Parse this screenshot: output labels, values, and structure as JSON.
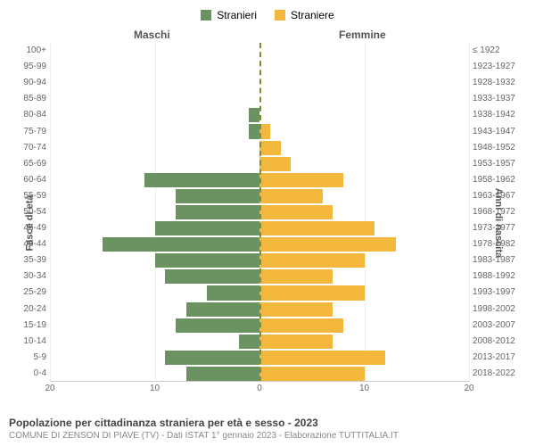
{
  "legend": {
    "male": {
      "label": "Stranieri",
      "color": "#6b9362"
    },
    "female": {
      "label": "Straniere",
      "color": "#f3b73e"
    }
  },
  "headers": {
    "left": "Maschi",
    "right": "Femmine"
  },
  "y_axis": {
    "left_title": "Fasce di età",
    "right_title": "Anni di nascita"
  },
  "chart": {
    "type": "population-pyramid",
    "xlim": [
      0,
      20
    ],
    "xtick_step": 10,
    "xticks_left": [
      "20",
      "10",
      "0"
    ],
    "xticks_right": [
      "0",
      "10",
      "20"
    ],
    "bar_color_left": "#6b9362",
    "bar_color_right": "#f3b73e",
    "background_color": "#ffffff",
    "grid_color": "#eeeeee",
    "center_line_color": "#888833",
    "rows": [
      {
        "age": "100+",
        "birth": "≤ 1922",
        "male": 0,
        "female": 0
      },
      {
        "age": "95-99",
        "birth": "1923-1927",
        "male": 0,
        "female": 0
      },
      {
        "age": "90-94",
        "birth": "1928-1932",
        "male": 0,
        "female": 0
      },
      {
        "age": "85-89",
        "birth": "1933-1937",
        "male": 0,
        "female": 0
      },
      {
        "age": "80-84",
        "birth": "1938-1942",
        "male": 1,
        "female": 0
      },
      {
        "age": "75-79",
        "birth": "1943-1947",
        "male": 1,
        "female": 1
      },
      {
        "age": "70-74",
        "birth": "1948-1952",
        "male": 0,
        "female": 2
      },
      {
        "age": "65-69",
        "birth": "1953-1957",
        "male": 0,
        "female": 3
      },
      {
        "age": "60-64",
        "birth": "1958-1962",
        "male": 11,
        "female": 8
      },
      {
        "age": "55-59",
        "birth": "1963-1967",
        "male": 8,
        "female": 6
      },
      {
        "age": "50-54",
        "birth": "1968-1972",
        "male": 8,
        "female": 7
      },
      {
        "age": "45-49",
        "birth": "1973-1977",
        "male": 10,
        "female": 11
      },
      {
        "age": "40-44",
        "birth": "1978-1982",
        "male": 15,
        "female": 13
      },
      {
        "age": "35-39",
        "birth": "1983-1987",
        "male": 10,
        "female": 10
      },
      {
        "age": "30-34",
        "birth": "1988-1992",
        "male": 9,
        "female": 7
      },
      {
        "age": "25-29",
        "birth": "1993-1997",
        "male": 5,
        "female": 10
      },
      {
        "age": "20-24",
        "birth": "1998-2002",
        "male": 7,
        "female": 7
      },
      {
        "age": "15-19",
        "birth": "2003-2007",
        "male": 8,
        "female": 8
      },
      {
        "age": "10-14",
        "birth": "2008-2012",
        "male": 2,
        "female": 7
      },
      {
        "age": "5-9",
        "birth": "2013-2017",
        "male": 9,
        "female": 12
      },
      {
        "age": "0-4",
        "birth": "2018-2022",
        "male": 7,
        "female": 10
      }
    ]
  },
  "footer": {
    "title": "Popolazione per cittadinanza straniera per età e sesso - 2023",
    "subtitle": "COMUNE DI ZENSON DI PIAVE (TV) - Dati ISTAT 1° gennaio 2023 - Elaborazione TUTTITALIA.IT"
  }
}
